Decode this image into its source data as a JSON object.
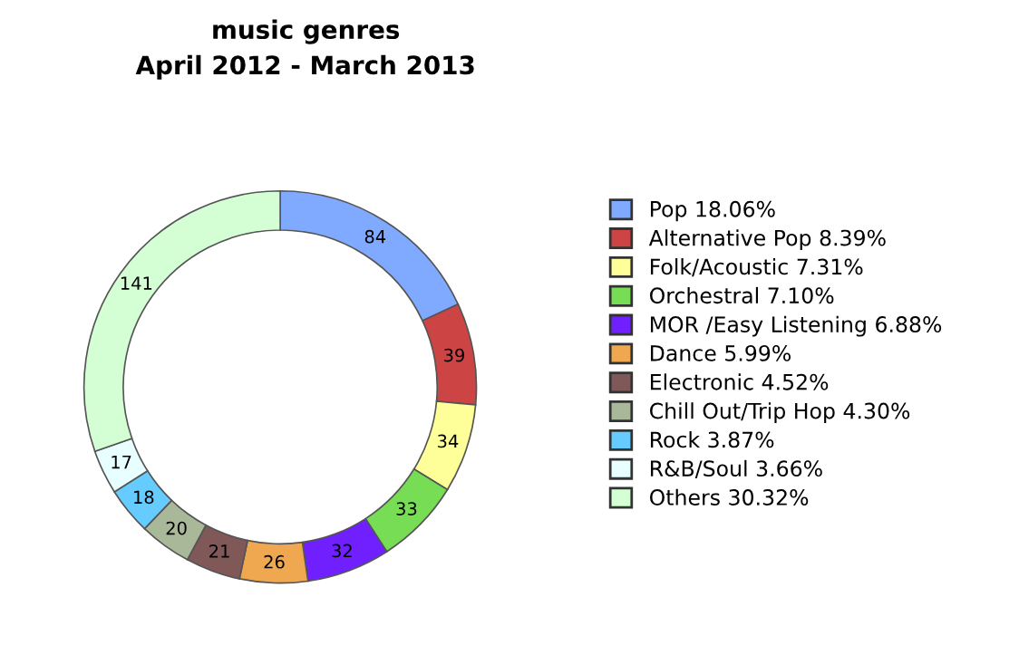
{
  "chart_data": {
    "type": "donut",
    "title": "music genres",
    "subtitle": "April 2012 - March 2013",
    "categories": [
      "Pop 18.06%",
      "Alternative Pop 8.39%",
      "Folk/Acoustic 7.31%",
      "Orchestral 7.10%",
      "MOR /Easy Listening 6.88%",
      "Dance 5.99%",
      "Electronic 4.52%",
      "Chill Out/Trip Hop 4.30%",
      "Rock 3.87%",
      "R&B/Soul 3.66%",
      "Others 30.32%"
    ],
    "values": [
      84,
      39,
      34,
      33,
      32,
      26,
      21,
      20,
      18,
      17,
      141
    ],
    "colors": [
      "#80aaff",
      "#cc4444",
      "#ffff99",
      "#77dd55",
      "#7020ff",
      "#f0a850",
      "#805858",
      "#a8b898",
      "#66ccff",
      "#e8ffff",
      "#d4ffd4"
    ],
    "data_labels": true,
    "legend": "right"
  }
}
